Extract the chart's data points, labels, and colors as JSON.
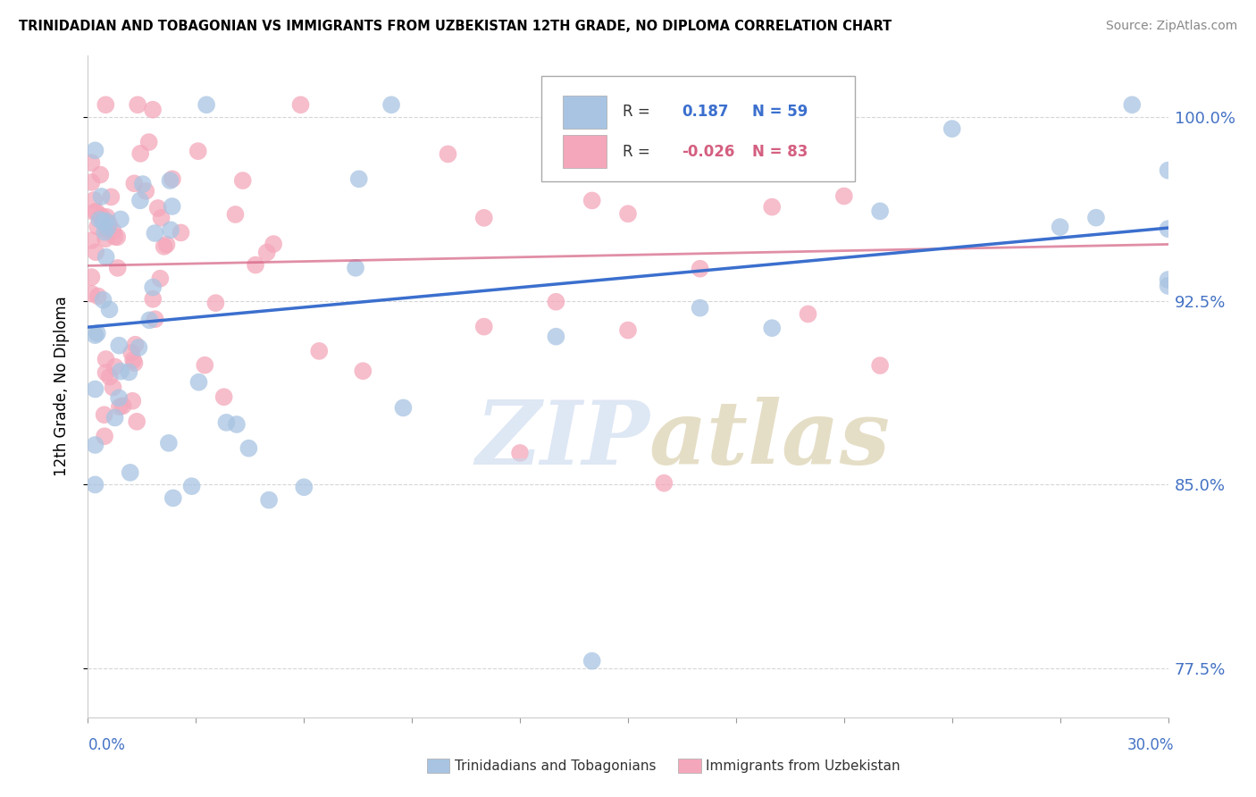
{
  "title": "TRINIDADIAN AND TOBAGONIAN VS IMMIGRANTS FROM UZBEKISTAN 12TH GRADE, NO DIPLOMA CORRELATION CHART",
  "source": "Source: ZipAtlas.com",
  "xmin": 0.0,
  "xmax": 0.3,
  "ymin": 0.755,
  "ymax": 1.025,
  "ytick_vals": [
    1.0,
    0.925,
    0.85,
    0.775
  ],
  "ytick_labels": [
    "100.0%",
    "92.5%",
    "85.0%",
    "77.5%"
  ],
  "series1_label": "Trinidadians and Tobagonians",
  "series1_color": "#a8c4e2",
  "series1_line_color": "#3b6fce",
  "series1_R": 0.187,
  "series1_N": 59,
  "series2_label": "Immigrants from Uzbekistan",
  "series2_color": "#f4a7ba",
  "series2_line_color": "#d45f80",
  "series2_R": -0.026,
  "series2_N": 83,
  "background_color": "#ffffff",
  "grid_color": "#cccccc",
  "title_color": "#000000",
  "source_color": "#888888",
  "axis_label_color": "#000000",
  "tick_color": "#4472c4"
}
